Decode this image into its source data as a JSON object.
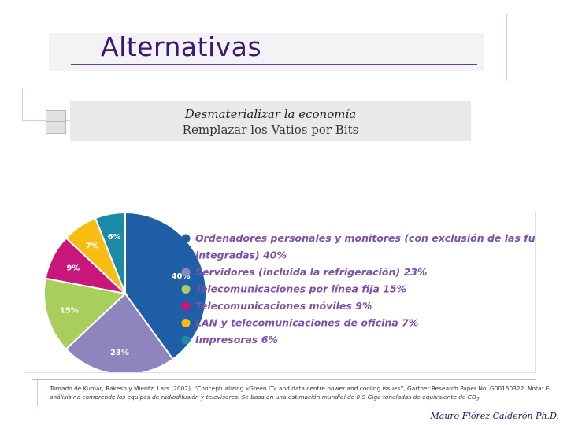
{
  "slide": {
    "title": "Alternativas",
    "subtitle_line1": "Desmaterializar la economía",
    "subtitle_line2": "Remplazar los Vatios  por Bits",
    "footnote_main": "Tomado de Kumar, Rakesh y Mieritz, Lars (2007). “Conceptualizing «Green IT» and data centre power and cooling issues”, Gartner Research Paper No. G00150322. Nota: ",
    "footnote_note_1": "El",
    "footnote_note_2": "análisis no comprende los equipos de radiodifusión y televisores. Se basa en una estimación mundial de 0.9 Giga toneladas de equivalente de CO",
    "footnote_sub": "2",
    "footnote_end": ".",
    "author": "Mauro Flórez Calderón Ph.D."
  },
  "colors": {
    "title": "#3a1a6e",
    "legend_text": "#7b52a8"
  },
  "chart_data": {
    "type": "pie",
    "title": "",
    "slices": [
      {
        "label": "Ordenadores personales y monitores (con exclusión de las fuentes de energía",
        "label_cont": "integradas)",
        "value": 40,
        "value_text": "40%",
        "slice_label": "40%",
        "color": "#1f5fa8"
      },
      {
        "label": "Servidores (incluida la refrigeración)",
        "value": 23,
        "value_text": "23%",
        "slice_label": "23%",
        "color": "#8e85bf"
      },
      {
        "label": "Telecomunicaciones por línea fija",
        "value": 15,
        "value_text": "15%",
        "slice_label": "15%",
        "color": "#a8cf5c"
      },
      {
        "label": "Telecomunicaciones móviles",
        "value": 9,
        "value_text": "9%",
        "slice_label": "9%",
        "color": "#c8167a"
      },
      {
        "label": "LAN y telecomunicaciones de oficina",
        "value": 7,
        "value_text": "7%",
        "slice_label": "7%",
        "color": "#f7bd13"
      },
      {
        "label": "Impresoras",
        "value": 6,
        "value_text": "6%",
        "slice_label": "6%",
        "color": "#1a8aa6"
      }
    ],
    "legend_position": "right"
  }
}
